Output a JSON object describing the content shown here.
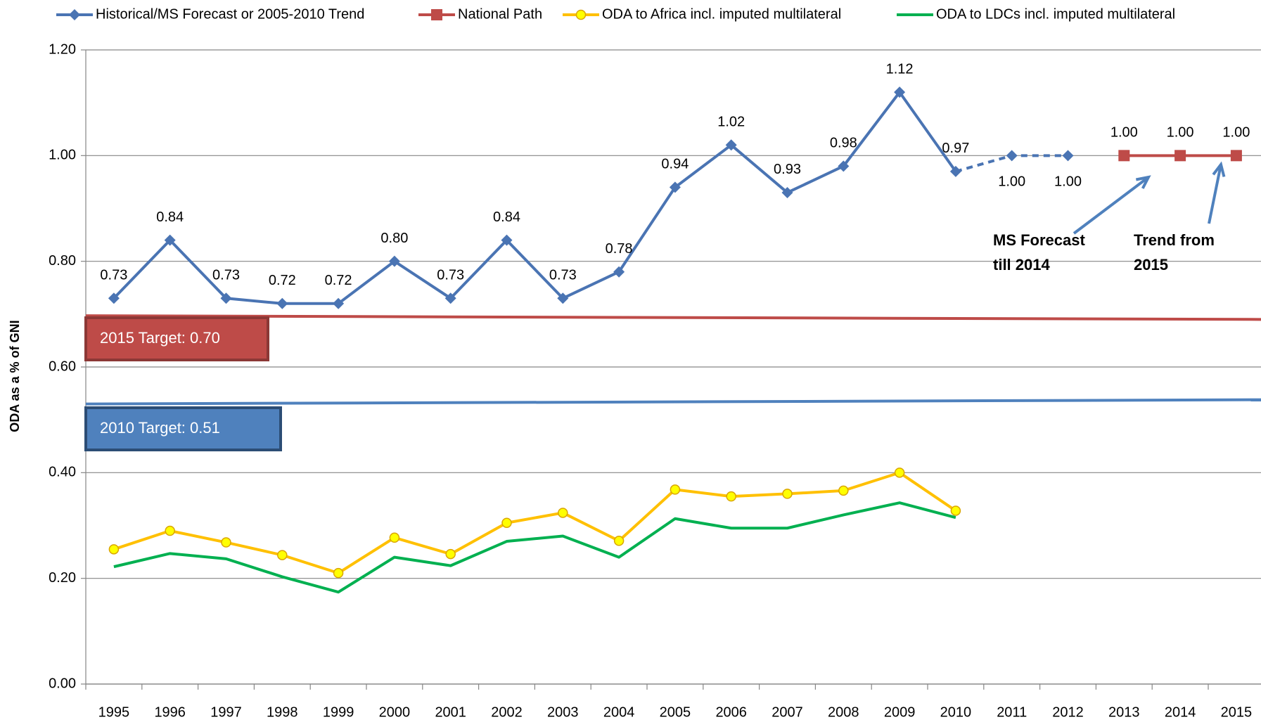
{
  "chart_data": {
    "type": "line",
    "y_axis_label": "ODA as a % of GNI",
    "categories": [
      "1995",
      "1996",
      "1997",
      "1998",
      "1999",
      "2000",
      "2001",
      "2002",
      "2003",
      "2004",
      "2005",
      "2006",
      "2007",
      "2008",
      "2009",
      "2010",
      "2011",
      "2012",
      "2013",
      "2014",
      "2015"
    ],
    "ylim": [
      0,
      1.2
    ],
    "yticks": [
      {
        "value": 0,
        "label": "0.00"
      },
      {
        "value": 0.2,
        "label": "0.20"
      },
      {
        "value": 0.4,
        "label": "0.40"
      },
      {
        "value": 0.6,
        "label": "0.60"
      },
      {
        "value": 0.8,
        "label": "0.80"
      },
      {
        "value": 1.0,
        "label": "1.00"
      },
      {
        "value": 1.2,
        "label": "1.20"
      }
    ],
    "grid": true,
    "legend": "top",
    "series": [
      {
        "name": "Historical/MS Forecast or 2005-2010 Trend",
        "color": "#4a74b3",
        "marker": "diamond",
        "dashed_after": "2010",
        "values": [
          0.73,
          0.84,
          0.73,
          0.72,
          0.72,
          0.8,
          0.73,
          0.84,
          0.73,
          0.78,
          0.94,
          1.02,
          0.93,
          0.98,
          1.12,
          0.97,
          1.0,
          1.0,
          null,
          null,
          null
        ],
        "value_labels": [
          "0.73",
          "0.84",
          "0.73",
          "0.72",
          "0.72",
          "0.80",
          "0.73",
          "0.84",
          "0.73",
          "0.78",
          "0.94",
          "1.02",
          "0.93",
          "0.98",
          "1.12",
          "0.97",
          "1.00",
          "1.00",
          null,
          null,
          null
        ]
      },
      {
        "name": "National Path",
        "color": "#be4b48",
        "marker": "square",
        "values": [
          null,
          null,
          null,
          null,
          null,
          null,
          null,
          null,
          null,
          null,
          null,
          null,
          null,
          null,
          null,
          null,
          null,
          null,
          1.0,
          1.0,
          1.0
        ],
        "value_labels": [
          null,
          null,
          null,
          null,
          null,
          null,
          null,
          null,
          null,
          null,
          null,
          null,
          null,
          null,
          null,
          null,
          null,
          null,
          "1.00",
          "1.00",
          "1.00"
        ]
      },
      {
        "name": "ODA to Africa incl. imputed multilateral",
        "color": "#ffc000",
        "marker": "circle",
        "values": [
          0.255,
          0.29,
          0.268,
          0.244,
          0.21,
          0.277,
          0.246,
          0.305,
          0.324,
          0.271,
          0.368,
          0.355,
          0.36,
          0.366,
          0.4,
          0.328,
          null,
          null,
          null,
          null,
          null
        ]
      },
      {
        "name": "ODA to LDCs incl. imputed multilateral",
        "color": "#00b050",
        "marker": "none",
        "values": [
          0.222,
          0.247,
          0.237,
          0.203,
          0.174,
          0.24,
          0.224,
          0.27,
          0.28,
          0.24,
          0.313,
          0.295,
          0.295,
          0.32,
          0.343,
          0.315,
          null,
          null,
          null,
          null,
          null
        ]
      }
    ],
    "targets": [
      {
        "label": "2015 Target: 0.70",
        "color": "#be4b48",
        "values": [
          0.697,
          0.69
        ]
      },
      {
        "label": "2010 Target: 0.51",
        "color": "#4f81bd",
        "values": [
          0.53,
          0.538
        ]
      }
    ],
    "annotations": [
      {
        "lines": [
          "MS Forecast",
          "till 2014"
        ]
      },
      {
        "lines": [
          "Trend from",
          "2015"
        ]
      }
    ]
  }
}
